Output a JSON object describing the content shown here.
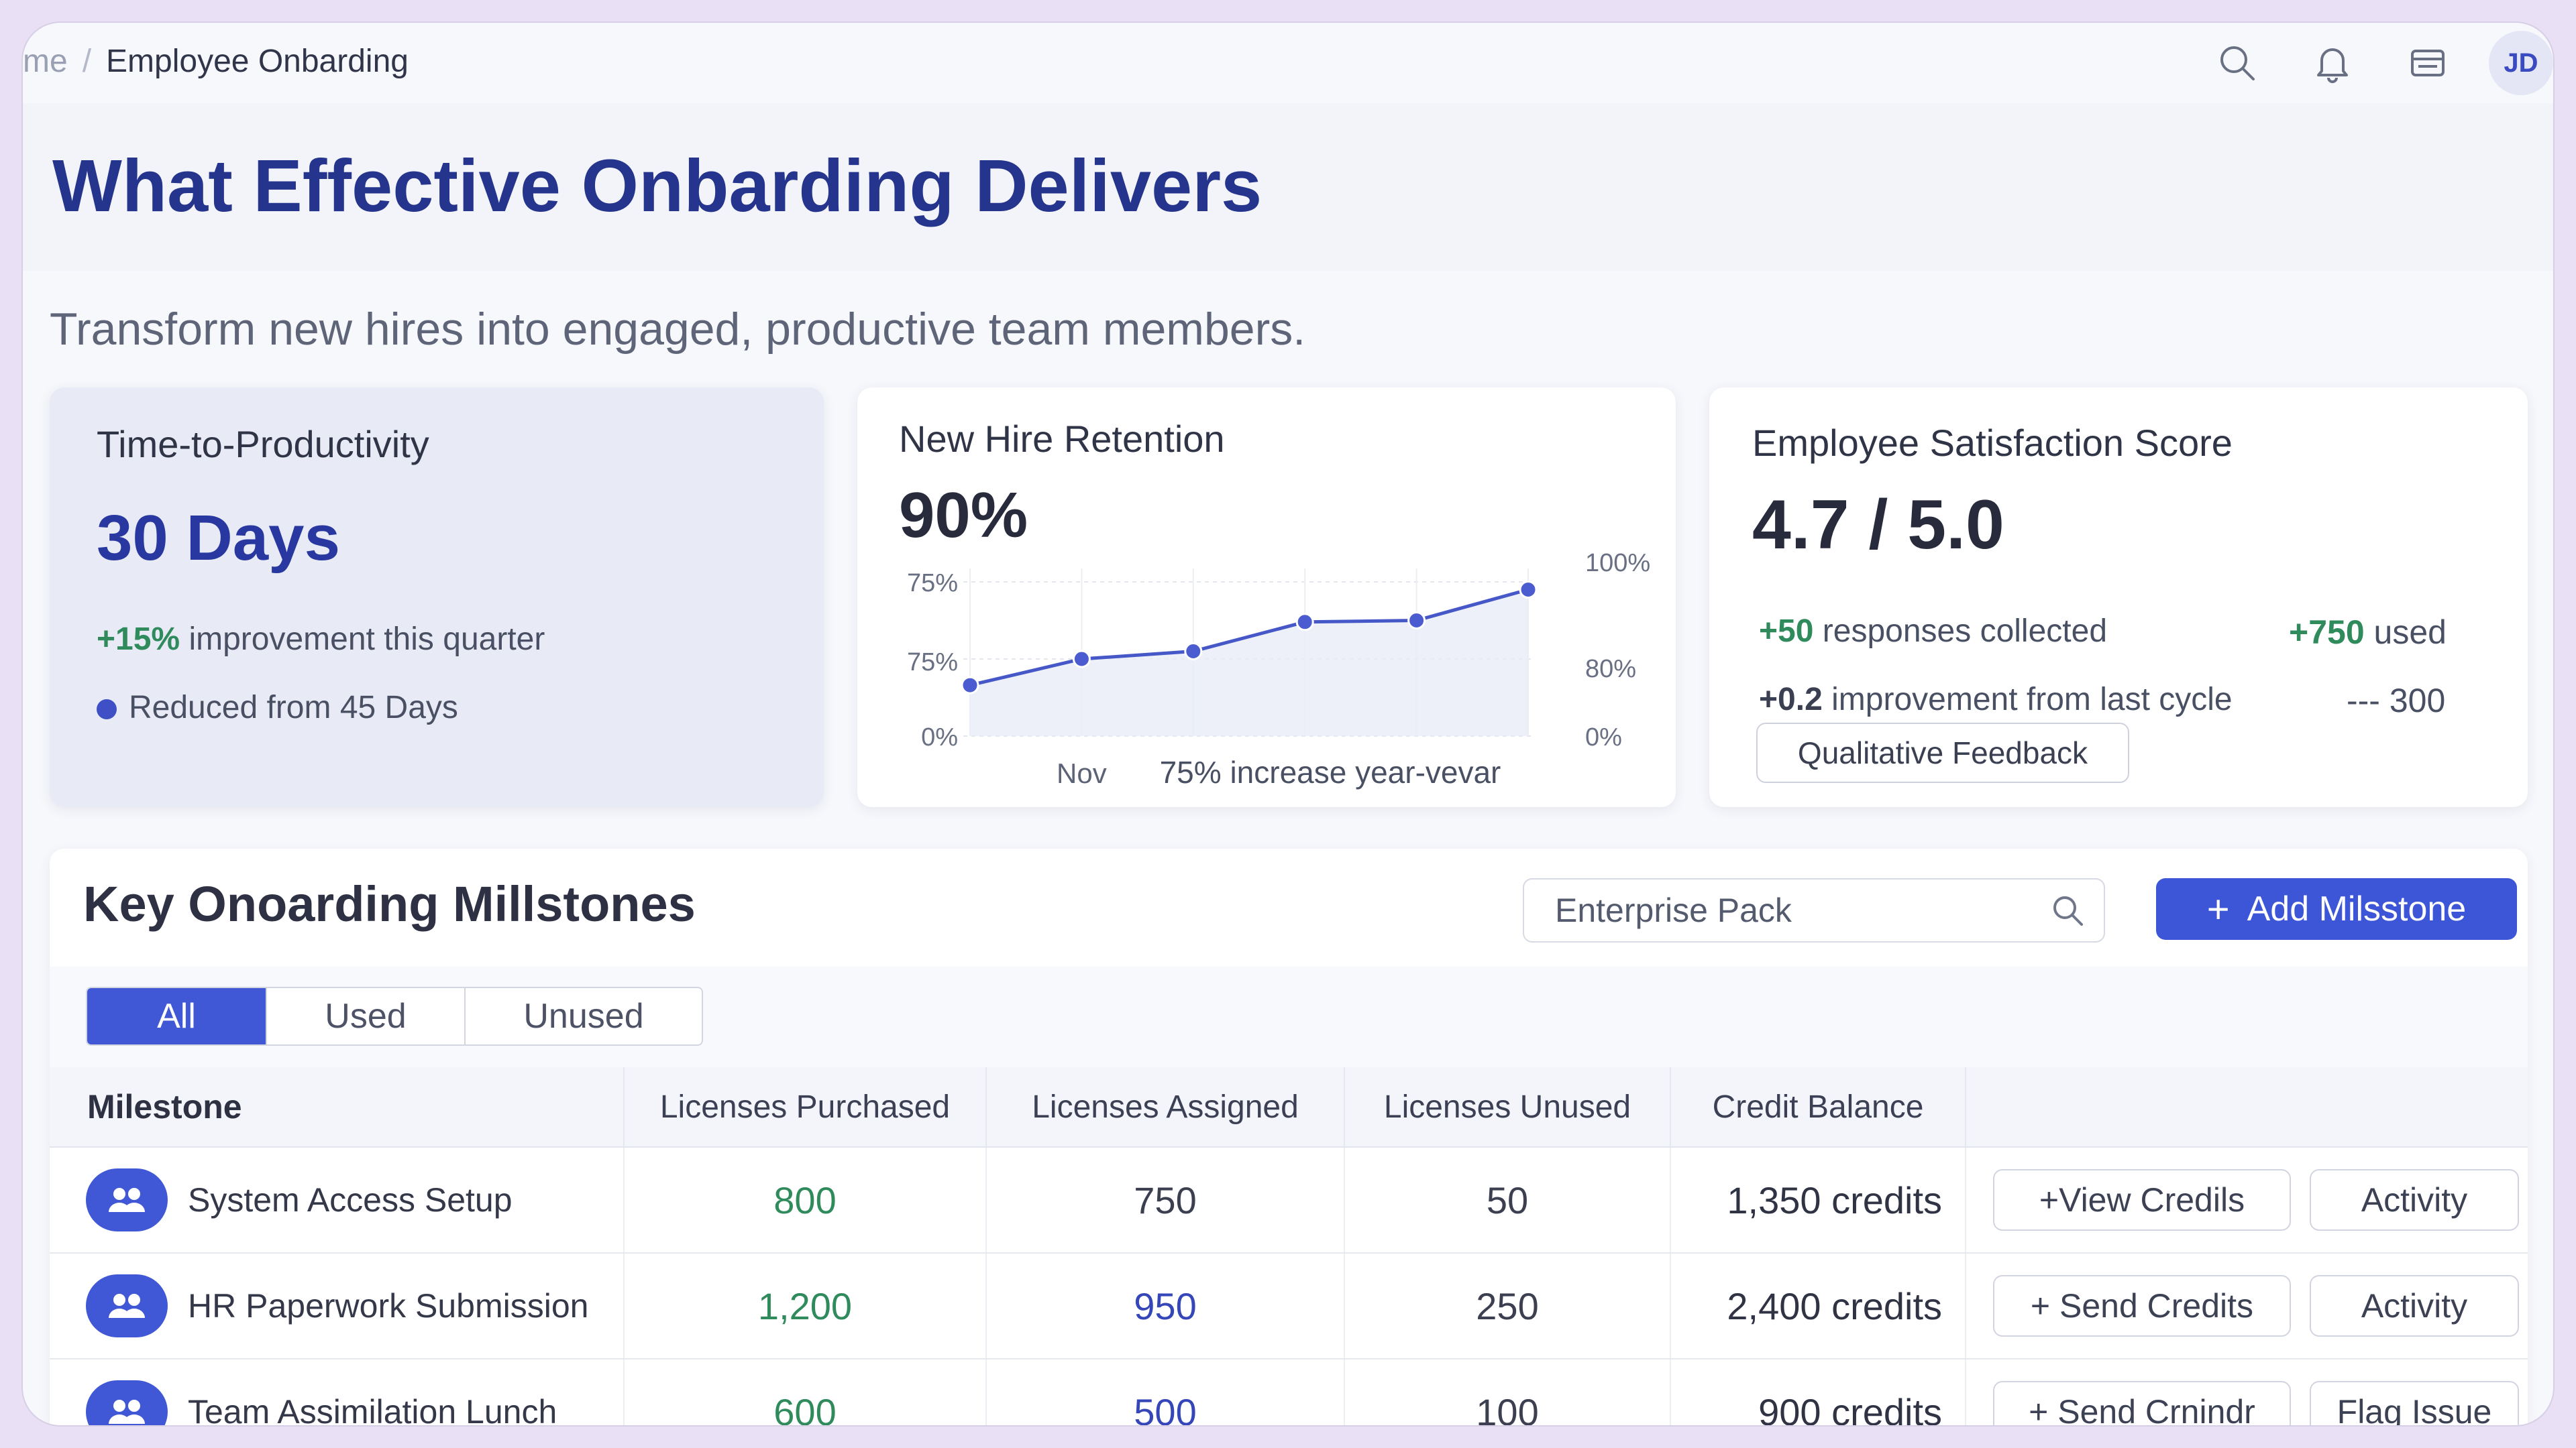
{
  "breadcrumb": {
    "home": "me",
    "separator": "/",
    "current": "Employee Onbarding"
  },
  "user": {
    "initials": "JD"
  },
  "header": {
    "title": "What Effective Onbarding Delivers",
    "subtitle": "Transform new hires into engaged, productive team members."
  },
  "cards": {
    "productivity": {
      "title": "Time-to-Productivity",
      "value": "30 Days",
      "change": "+15%",
      "change_text": "improvement this quarter",
      "note": "Reduced from 45 Days"
    },
    "retention": {
      "title": "New Hire Retention",
      "value": "90%",
      "caption": "75% increase year-vevar"
    },
    "satisfaction": {
      "title": "Employee Satisfaction Score",
      "value": "4.7 / 5.0",
      "responses_value": "+50",
      "responses_text": "responses collected",
      "used_value": "+750",
      "used_text": "used",
      "improve_value": "+0.2",
      "improve_text": "improvement from last cycle",
      "side_note": "--- 300",
      "feedback_button": "Qualitative Feedback"
    }
  },
  "chart_data": {
    "type": "line",
    "title": "New Hire Retention",
    "x": [
      0,
      1,
      2,
      3,
      4,
      5
    ],
    "values": [
      33,
      50,
      55,
      74,
      75,
      95
    ],
    "x_tick_labels": [
      "Nov"
    ],
    "left_tick_labels": [
      "75%",
      "75%",
      "0%"
    ],
    "right_tick_labels": [
      "100%",
      "80%",
      "0%"
    ],
    "ylim": [
      0,
      100
    ],
    "caption": "75% increase year-vevar",
    "grid": true
  },
  "milestones": {
    "title": "Key Onoarding Millstones",
    "search_value": "Enterprise Pack",
    "add_button": "Add Milsstone",
    "filters": [
      "All",
      "Used",
      "Unused"
    ],
    "active_filter": "All",
    "columns": [
      "Milestone",
      "Licenses Purchased",
      "Licenses Assigned",
      "Licenses Unused",
      "Credit Balance"
    ],
    "rows": [
      {
        "name": "System Access Setup",
        "purchased": "800",
        "assigned": "750",
        "unused": "50",
        "credit_value": "1,350",
        "credit_unit": "credits",
        "action_a": "+View Credils",
        "action_b": "Activity"
      },
      {
        "name": "HR Paperwork Submission",
        "purchased": "1,200",
        "assigned": "950",
        "unused": "250",
        "credit_value": "2,400",
        "credit_unit": "credits",
        "action_a": "+ Send Credits",
        "action_b": "Activity"
      },
      {
        "name": "Team Assimilation Lunch",
        "purchased": "600",
        "assigned": "500",
        "unused": "100",
        "credit_value": "900",
        "credit_unit": "credits",
        "action_a": "+ Send Crnindr",
        "action_b": "Flag Issue"
      }
    ]
  },
  "colors": {
    "accent": "#3d56d8",
    "title": "#25348c",
    "positive": "#2f8a5c"
  }
}
